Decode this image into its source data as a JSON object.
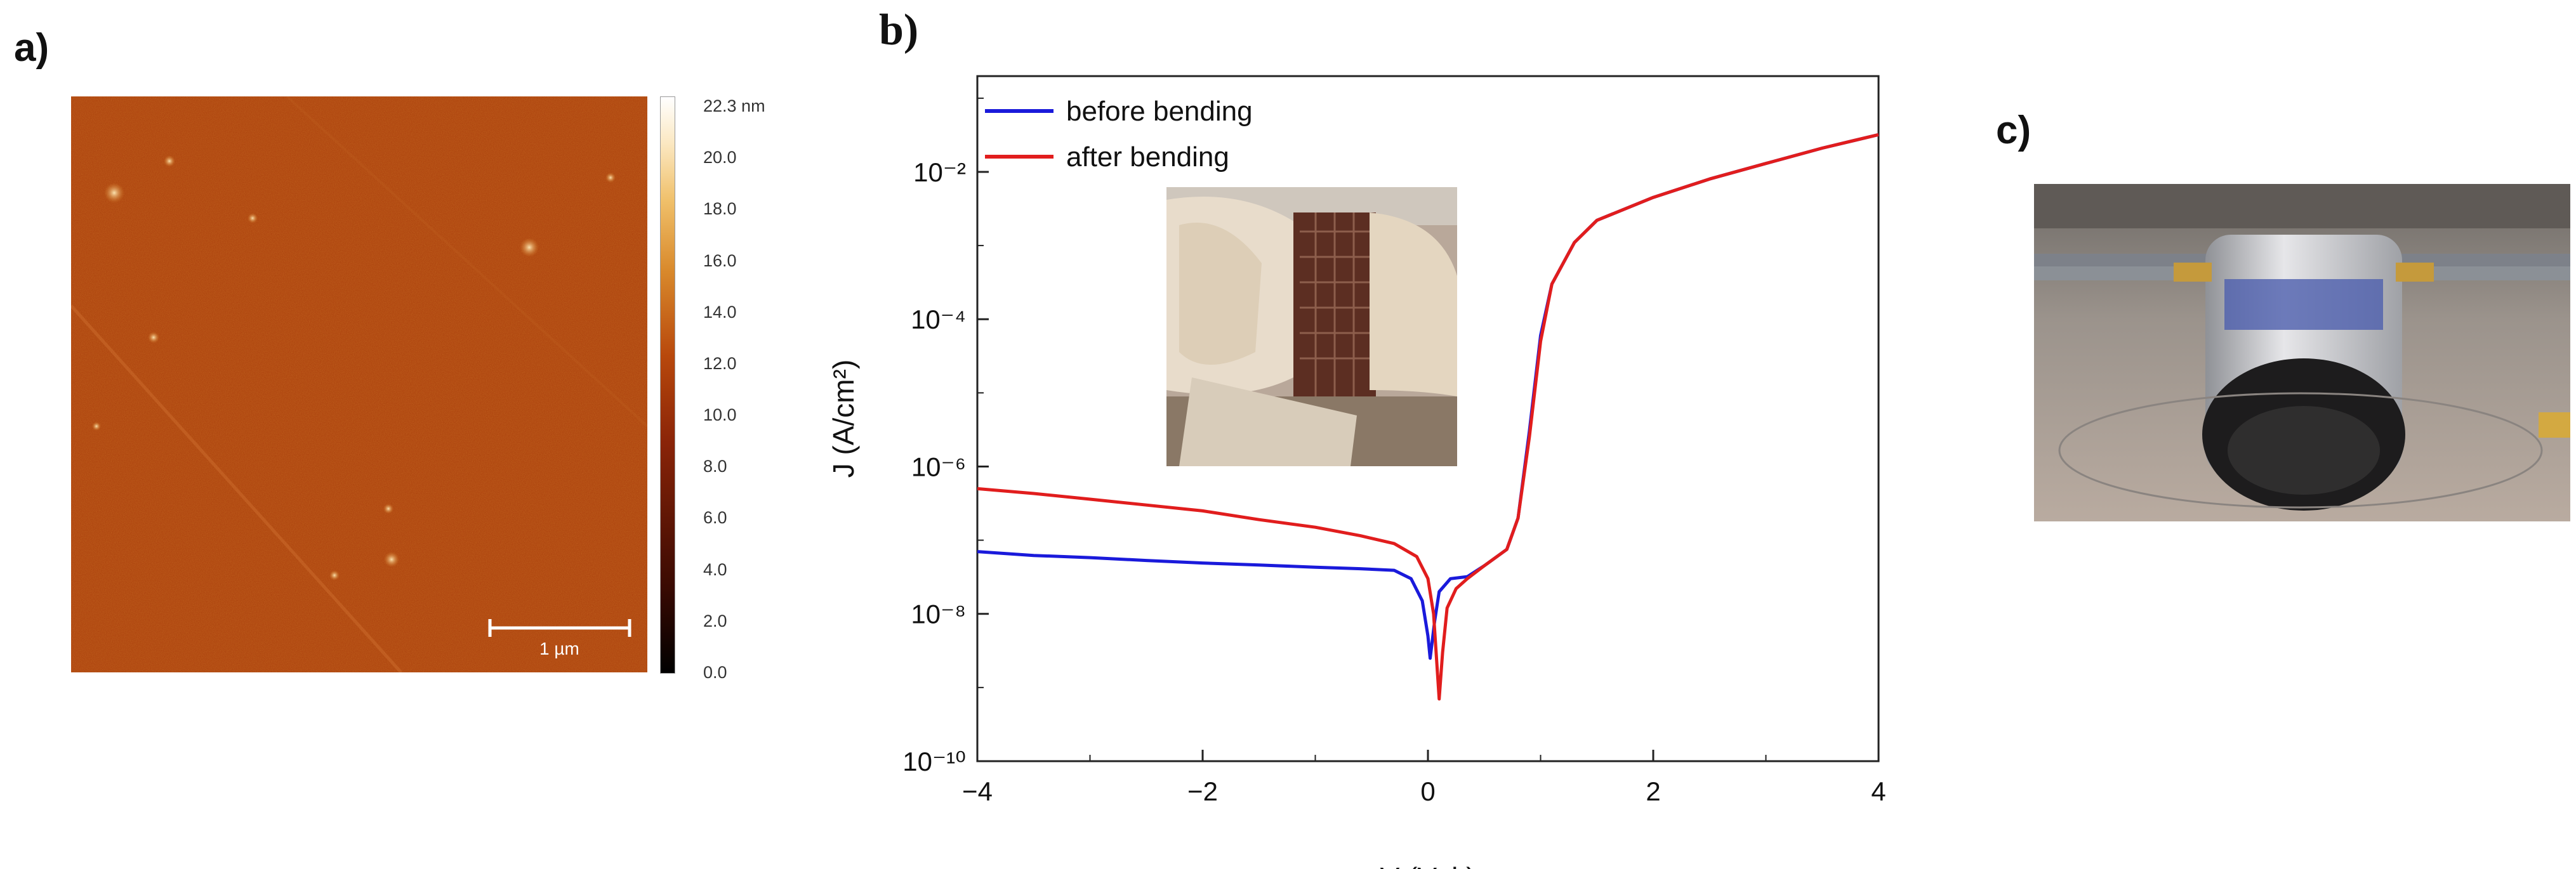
{
  "panels": {
    "a": {
      "label": "a)"
    },
    "b": {
      "label": "b)"
    },
    "c": {
      "label": "c)"
    }
  },
  "afm": {
    "scale_bar_label": "1 µm",
    "colorbar_ticks": [
      "22.3 nm",
      "20.0",
      "18.0",
      "16.0",
      "14.0",
      "12.0",
      "10.0",
      "8.0",
      "6.0",
      "4.0",
      "2.0",
      "0.0"
    ]
  },
  "chart_data": {
    "type": "line",
    "title": "",
    "xlabel": "V (Volt)",
    "ylabel": "J (A/cm²)",
    "xlim": [
      -4,
      4
    ],
    "ylim_log10": [
      -10,
      -0.7
    ],
    "yscale": "log",
    "x_ticks": [
      -4,
      -2,
      0,
      2,
      4
    ],
    "x_tick_labels": [
      "−4",
      "−2",
      "0",
      "2",
      "4"
    ],
    "y_ticks_log10": [
      -10,
      -8,
      -6,
      -4,
      -2
    ],
    "y_tick_labels": [
      "10⁻¹⁰",
      "10⁻⁸",
      "10⁻⁶",
      "10⁻⁴",
      "10⁻²"
    ],
    "legend_position": "top-left",
    "series": [
      {
        "name": "before bending",
        "color": "#1a1adb",
        "points": [
          [
            -4,
            7e-08
          ],
          [
            -3.5,
            6.2e-08
          ],
          [
            -3,
            5.8e-08
          ],
          [
            -2.5,
            5.3e-08
          ],
          [
            -2,
            4.9e-08
          ],
          [
            -1.5,
            4.6e-08
          ],
          [
            -1,
            4.3e-08
          ],
          [
            -0.6,
            4.1e-08
          ],
          [
            -0.3,
            3.9e-08
          ],
          [
            -0.15,
            3e-08
          ],
          [
            -0.05,
            1.5e-08
          ],
          [
            0.0,
            5e-09
          ],
          [
            0.02,
            2.5e-09
          ],
          [
            0.06,
            8e-09
          ],
          [
            0.1,
            2e-08
          ],
          [
            0.2,
            3e-08
          ],
          [
            0.35,
            3.2e-08
          ],
          [
            0.5,
            4.5e-08
          ],
          [
            0.7,
            7.5e-08
          ],
          [
            0.8,
            2e-07
          ],
          [
            0.9,
            3e-06
          ],
          [
            1.0,
            6e-05
          ],
          [
            1.1,
            0.0003
          ],
          [
            1.3,
            0.0011
          ],
          [
            1.5,
            0.0022
          ],
          [
            2,
            0.0045
          ],
          [
            2.5,
            0.008
          ],
          [
            3,
            0.013
          ],
          [
            3.5,
            0.021
          ],
          [
            4,
            0.032
          ]
        ]
      },
      {
        "name": "after bending",
        "color": "#e11d1d",
        "points": [
          [
            -4,
            5e-07
          ],
          [
            -3.5,
            4.3e-07
          ],
          [
            -3,
            3.6e-07
          ],
          [
            -2.5,
            3e-07
          ],
          [
            -2,
            2.5e-07
          ],
          [
            -1.5,
            1.9e-07
          ],
          [
            -1,
            1.5e-07
          ],
          [
            -0.6,
            1.15e-07
          ],
          [
            -0.3,
            9e-08
          ],
          [
            -0.1,
            6e-08
          ],
          [
            0.0,
            3e-08
          ],
          [
            0.05,
            1e-08
          ],
          [
            0.1,
            7e-10
          ],
          [
            0.13,
            3e-09
          ],
          [
            0.17,
            1.2e-08
          ],
          [
            0.25,
            2.2e-08
          ],
          [
            0.35,
            3e-08
          ],
          [
            0.5,
            4.5e-08
          ],
          [
            0.7,
            7.5e-08
          ],
          [
            0.8,
            2e-07
          ],
          [
            0.9,
            2.5e-06
          ],
          [
            1.0,
            5e-05
          ],
          [
            1.1,
            0.0003
          ],
          [
            1.3,
            0.0011
          ],
          [
            1.5,
            0.0022
          ],
          [
            2,
            0.0045
          ],
          [
            2.5,
            0.008
          ],
          [
            3,
            0.013
          ],
          [
            3.5,
            0.021
          ],
          [
            4,
            0.032
          ]
        ]
      }
    ]
  }
}
